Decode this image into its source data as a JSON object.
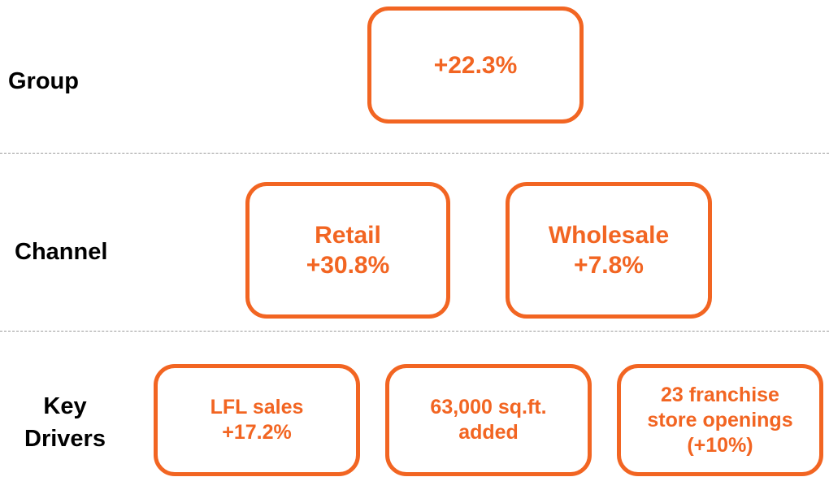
{
  "rows": [
    {
      "label": [
        "Group"
      ],
      "boxes": [
        {
          "lines": [
            "+22.3%"
          ]
        }
      ]
    },
    {
      "label": [
        "Channel"
      ],
      "boxes": [
        {
          "lines": [
            "Retail",
            "+30.8%"
          ]
        },
        {
          "lines": [
            "Wholesale",
            "+7.8%"
          ]
        }
      ]
    },
    {
      "label": [
        "Key",
        "Drivers"
      ],
      "boxes": [
        {
          "lines": [
            "LFL sales",
            "+17.2%"
          ]
        },
        {
          "lines": [
            "63,000 sq.ft.",
            "added"
          ]
        },
        {
          "lines": [
            "23 franchise",
            "store openings",
            "(+10%)"
          ]
        }
      ]
    }
  ]
}
